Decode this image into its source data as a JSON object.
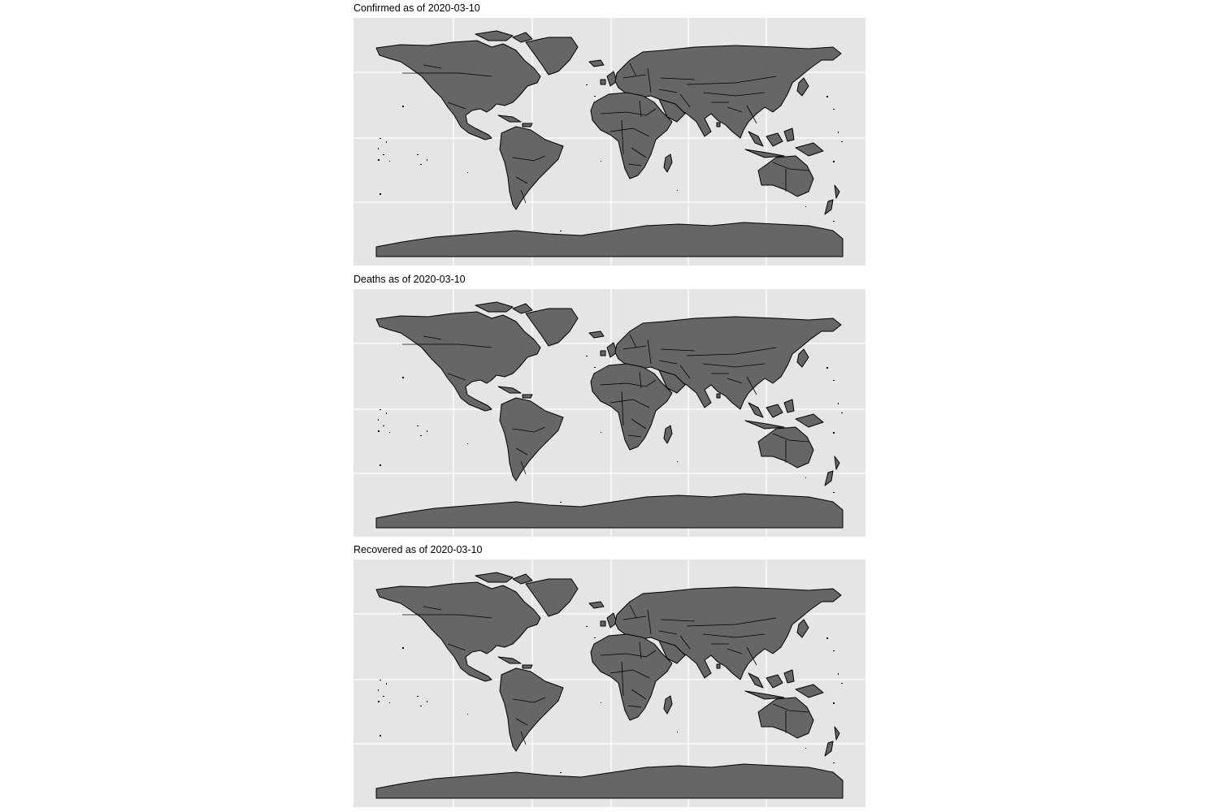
{
  "panels": [
    {
      "id": "confirmed",
      "title": "Confirmed as of 2020-03-10"
    },
    {
      "id": "deaths",
      "title": "Deaths as of 2020-03-10"
    },
    {
      "id": "recovered",
      "title": "Recovered as of 2020-03-10"
    }
  ],
  "map": {
    "fill_color": "#666666",
    "outline_color": "#000000",
    "background_color": "#e5e5e5",
    "grid_color": "#ffffff",
    "grid": true
  }
}
